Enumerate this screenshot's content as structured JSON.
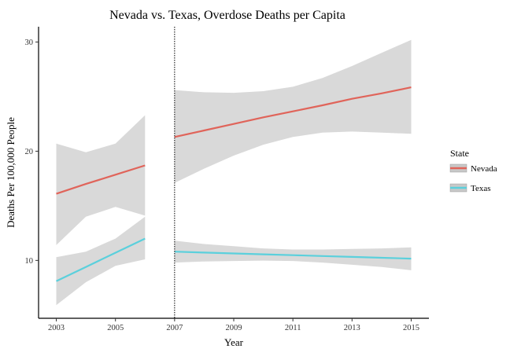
{
  "chart_data": {
    "type": "line",
    "title": "Nevada vs. Texas, Overdose Deaths per Capita",
    "xlabel": "Year",
    "ylabel": "Deaths Per 100,000 People",
    "xlim": [
      2002.4,
      2015.6
    ],
    "ylim": [
      4.7,
      31.4
    ],
    "x_ticks": [
      "2003",
      "2005",
      "2007",
      "2009",
      "2011",
      "2013",
      "2015"
    ],
    "y_ticks": [
      "10",
      "20",
      "30"
    ],
    "x_tick_values": [
      2003,
      2005,
      2007,
      2009,
      2011,
      2013,
      2015
    ],
    "y_tick_values": [
      10,
      20,
      30
    ],
    "cutoff_line": 2007,
    "grid": false,
    "legend_title": "State",
    "legend_position": "right",
    "series": [
      {
        "name": "Nevada",
        "color": "#e0645a",
        "segments": [
          {
            "x": [
              2003,
              2004,
              2005,
              2006
            ],
            "fit": [
              16.1,
              17.0,
              17.85,
              18.7
            ],
            "lower": [
              11.4,
              14.0,
              14.9,
              14.1
            ],
            "upper": [
              20.7,
              19.9,
              20.7,
              23.3
            ]
          },
          {
            "x": [
              2007,
              2008,
              2009,
              2010,
              2011,
              2012,
              2013,
              2014,
              2015
            ],
            "fit": [
              21.3,
              21.9,
              22.5,
              23.1,
              23.65,
              24.2,
              24.8,
              25.3,
              25.85
            ],
            "lower": [
              17.1,
              18.4,
              19.6,
              20.6,
              21.3,
              21.7,
              21.8,
              21.7,
              21.6
            ],
            "upper": [
              25.6,
              25.4,
              25.35,
              25.5,
              25.9,
              26.7,
              27.8,
              29.0,
              30.2
            ]
          }
        ]
      },
      {
        "name": "Texas",
        "color": "#5bd0dc",
        "segments": [
          {
            "x": [
              2003,
              2004,
              2005,
              2006
            ],
            "fit": [
              8.1,
              9.4,
              10.7,
              12.0
            ],
            "lower": [
              5.9,
              8.0,
              9.5,
              10.1
            ],
            "upper": [
              10.3,
              10.8,
              12.0,
              14.0
            ]
          },
          {
            "x": [
              2007,
              2008,
              2009,
              2010,
              2011,
              2012,
              2013,
              2014,
              2015
            ],
            "fit": [
              10.8,
              10.72,
              10.64,
              10.56,
              10.48,
              10.4,
              10.32,
              10.24,
              10.16
            ],
            "lower": [
              9.8,
              9.9,
              9.95,
              9.98,
              9.95,
              9.8,
              9.6,
              9.4,
              9.1
            ],
            "upper": [
              11.8,
              11.5,
              11.3,
              11.1,
              11.0,
              11.0,
              11.05,
              11.1,
              11.2
            ]
          }
        ]
      }
    ]
  }
}
